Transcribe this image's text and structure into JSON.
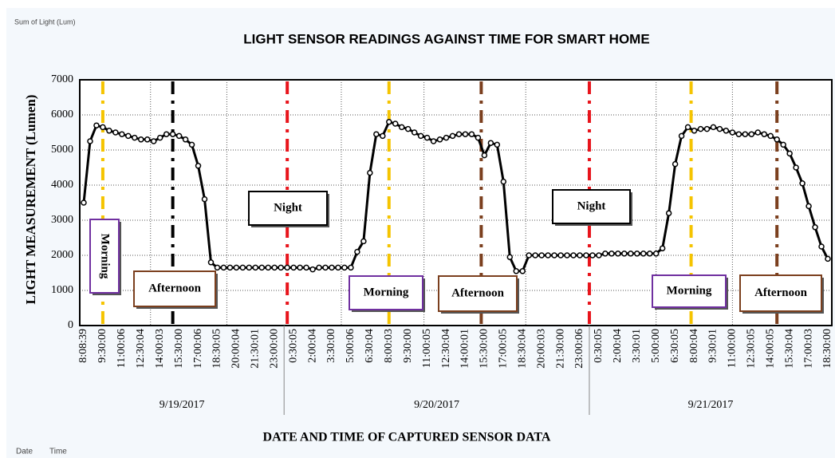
{
  "chart_data": {
    "type": "line",
    "title": "LIGHT SENSOR READINGS AGAINST TIME FOR SMART HOME",
    "value_field": "Sum of Light (Lum)",
    "axis_fields": [
      "Date",
      "Time"
    ],
    "y_label": "LIGHT MEASUREMENT (Lumen)",
    "x_label": "DATE AND TIME OF CAPTURED SENSOR DATA",
    "x_groups": [
      "9/19/2017",
      "9/20/2017",
      "9/21/2017"
    ],
    "annotations": [
      "Morning",
      "Afternoon",
      "Night",
      "Morning",
      "Afternoon",
      "Night",
      "Morning",
      "Afternoon"
    ],
    "categories": [
      "8:08:39",
      null,
      null,
      "9:30:00",
      null,
      null,
      "11:00:06",
      null,
      null,
      "12:30:04",
      null,
      null,
      "14:00:03",
      null,
      null,
      "15:30:00",
      null,
      null,
      "17:00:06",
      null,
      null,
      "18:30:05",
      null,
      null,
      "20:00:04",
      null,
      null,
      "21:30:01",
      null,
      null,
      "23:00:00",
      null,
      null,
      "0:30:05",
      null,
      null,
      "2:00:04",
      null,
      null,
      "3:30:00",
      null,
      null,
      "5:00:06",
      null,
      null,
      "6:30:04",
      null,
      null,
      "8:00:03",
      null,
      null,
      "9:30:00",
      null,
      null,
      "11:00:05",
      null,
      null,
      "12:30:04",
      null,
      null,
      "14:00:01",
      null,
      null,
      "15:30:00",
      null,
      null,
      "17:00:05",
      null,
      null,
      "18:30:04",
      null,
      null,
      "20:00:03",
      null,
      null,
      "21:30:00",
      null,
      null,
      "23:00:06",
      null,
      null,
      "0:30:05",
      null,
      null,
      "2:00:04",
      null,
      null,
      "3:30:01",
      null,
      null,
      "5:00:00",
      null,
      null,
      "6:30:05",
      null,
      null,
      "8:00:04",
      null,
      null,
      "9:30:01",
      null,
      null,
      "11:00:00",
      null,
      null,
      "12:30:05",
      null,
      null,
      "14:00:05",
      null,
      null,
      "15:30:04",
      null,
      null,
      "17:00:03",
      null,
      null,
      "18:30:00"
    ],
    "series": [
      {
        "name": "Sum of Light (Lum)",
        "color": "#000000",
        "values": [
          3500,
          5250,
          5700,
          5650,
          5550,
          5500,
          5450,
          5400,
          5350,
          5300,
          5300,
          5250,
          5350,
          5450,
          5450,
          5400,
          5300,
          5150,
          4550,
          3600,
          1800,
          1650,
          1650,
          1650,
          1650,
          1650,
          1650,
          1650,
          1650,
          1650,
          1650,
          1650,
          1650,
          1650,
          1650,
          1650,
          1600,
          1650,
          1650,
          1650,
          1650,
          1650,
          1650,
          2100,
          2400,
          4350,
          5450,
          5400,
          5800,
          5750,
          5650,
          5600,
          5500,
          5400,
          5350,
          5250,
          5300,
          5350,
          5400,
          5450,
          5450,
          5450,
          5350,
          4850,
          5200,
          5150,
          4100,
          1950,
          1550,
          1550,
          2000,
          2000,
          2000,
          2000,
          2000,
          2000,
          2000,
          2000,
          2000,
          2000,
          2000,
          2000,
          2050,
          2050,
          2050,
          2050,
          2050,
          2050,
          2050,
          2050,
          2050,
          2200,
          3200,
          4600,
          5400,
          5650,
          5550,
          5600,
          5600,
          5650,
          5600,
          5550,
          5500,
          5450,
          5450,
          5450,
          5500,
          5450,
          5400,
          5300,
          5150,
          4900,
          4500,
          4050,
          3400,
          2800,
          2250,
          1900
        ]
      }
    ],
    "ylim": [
      0,
      7000
    ],
    "yticks": [
      0,
      1000,
      2000,
      3000,
      4000,
      5000,
      6000,
      7000
    ],
    "grid": true
  }
}
